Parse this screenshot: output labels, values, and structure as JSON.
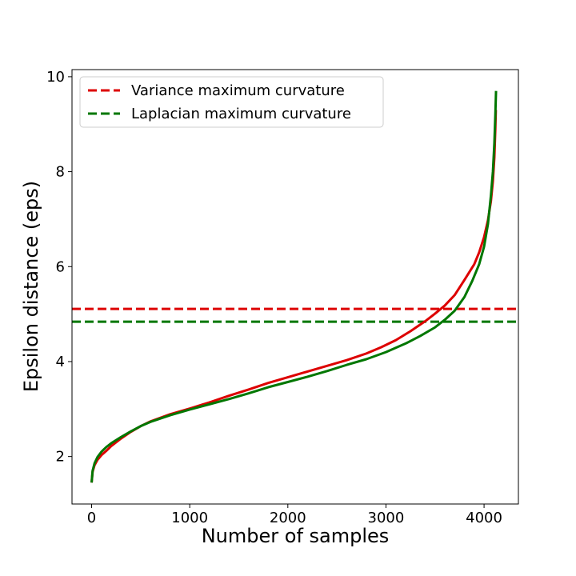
{
  "chart_data": {
    "type": "line",
    "title": "",
    "xlabel": "Number of samples",
    "ylabel": "Epsilon distance (eps)",
    "xlim": [
      -200,
      4350
    ],
    "ylim": [
      1.0,
      10.15
    ],
    "xticks": [
      0,
      1000,
      2000,
      3000,
      4000
    ],
    "yticks": [
      2,
      4,
      6,
      8,
      10
    ],
    "grid": false,
    "legend_position": "top-left",
    "series": [
      {
        "name": "red-curve",
        "color": "#dd0000",
        "points": [
          [
            0,
            1.45
          ],
          [
            10,
            1.68
          ],
          [
            30,
            1.82
          ],
          [
            60,
            1.93
          ],
          [
            100,
            2.03
          ],
          [
            150,
            2.12
          ],
          [
            200,
            2.22
          ],
          [
            300,
            2.38
          ],
          [
            400,
            2.52
          ],
          [
            500,
            2.64
          ],
          [
            600,
            2.74
          ],
          [
            800,
            2.89
          ],
          [
            1000,
            3.01
          ],
          [
            1200,
            3.14
          ],
          [
            1400,
            3.28
          ],
          [
            1600,
            3.41
          ],
          [
            1800,
            3.55
          ],
          [
            2000,
            3.67
          ],
          [
            2200,
            3.79
          ],
          [
            2400,
            3.91
          ],
          [
            2600,
            4.03
          ],
          [
            2800,
            4.17
          ],
          [
            2950,
            4.3
          ],
          [
            3100,
            4.45
          ],
          [
            3250,
            4.64
          ],
          [
            3400,
            4.85
          ],
          [
            3500,
            5.01
          ],
          [
            3600,
            5.18
          ],
          [
            3700,
            5.4
          ],
          [
            3800,
            5.72
          ],
          [
            3900,
            6.05
          ],
          [
            3950,
            6.3
          ],
          [
            4000,
            6.62
          ],
          [
            4040,
            6.98
          ],
          [
            4070,
            7.38
          ],
          [
            4090,
            7.8
          ],
          [
            4105,
            8.3
          ],
          [
            4115,
            8.9
          ],
          [
            4120,
            9.3
          ]
        ]
      },
      {
        "name": "green-curve",
        "color": "#007700",
        "points": [
          [
            0,
            1.45
          ],
          [
            10,
            1.7
          ],
          [
            30,
            1.86
          ],
          [
            60,
            1.99
          ],
          [
            100,
            2.1
          ],
          [
            150,
            2.2
          ],
          [
            200,
            2.28
          ],
          [
            300,
            2.41
          ],
          [
            400,
            2.53
          ],
          [
            500,
            2.64
          ],
          [
            600,
            2.73
          ],
          [
            800,
            2.87
          ],
          [
            1000,
            2.99
          ],
          [
            1200,
            3.1
          ],
          [
            1400,
            3.21
          ],
          [
            1600,
            3.33
          ],
          [
            1800,
            3.46
          ],
          [
            2000,
            3.57
          ],
          [
            2200,
            3.68
          ],
          [
            2400,
            3.8
          ],
          [
            2600,
            3.93
          ],
          [
            2800,
            4.05
          ],
          [
            3000,
            4.2
          ],
          [
            3200,
            4.38
          ],
          [
            3350,
            4.54
          ],
          [
            3500,
            4.72
          ],
          [
            3600,
            4.88
          ],
          [
            3700,
            5.07
          ],
          [
            3800,
            5.36
          ],
          [
            3880,
            5.7
          ],
          [
            3950,
            6.05
          ],
          [
            4000,
            6.42
          ],
          [
            4040,
            6.9
          ],
          [
            4070,
            7.5
          ],
          [
            4090,
            8.0
          ],
          [
            4105,
            8.6
          ],
          [
            4115,
            9.2
          ],
          [
            4122,
            9.7
          ]
        ]
      }
    ],
    "hlines": [
      {
        "label": "Variance maximum curvature",
        "y": 5.11,
        "color": "#dd0000",
        "style": "dashed"
      },
      {
        "label": "Laplacian maximum curvature",
        "y": 4.84,
        "color": "#007700",
        "style": "dashed"
      }
    ]
  }
}
